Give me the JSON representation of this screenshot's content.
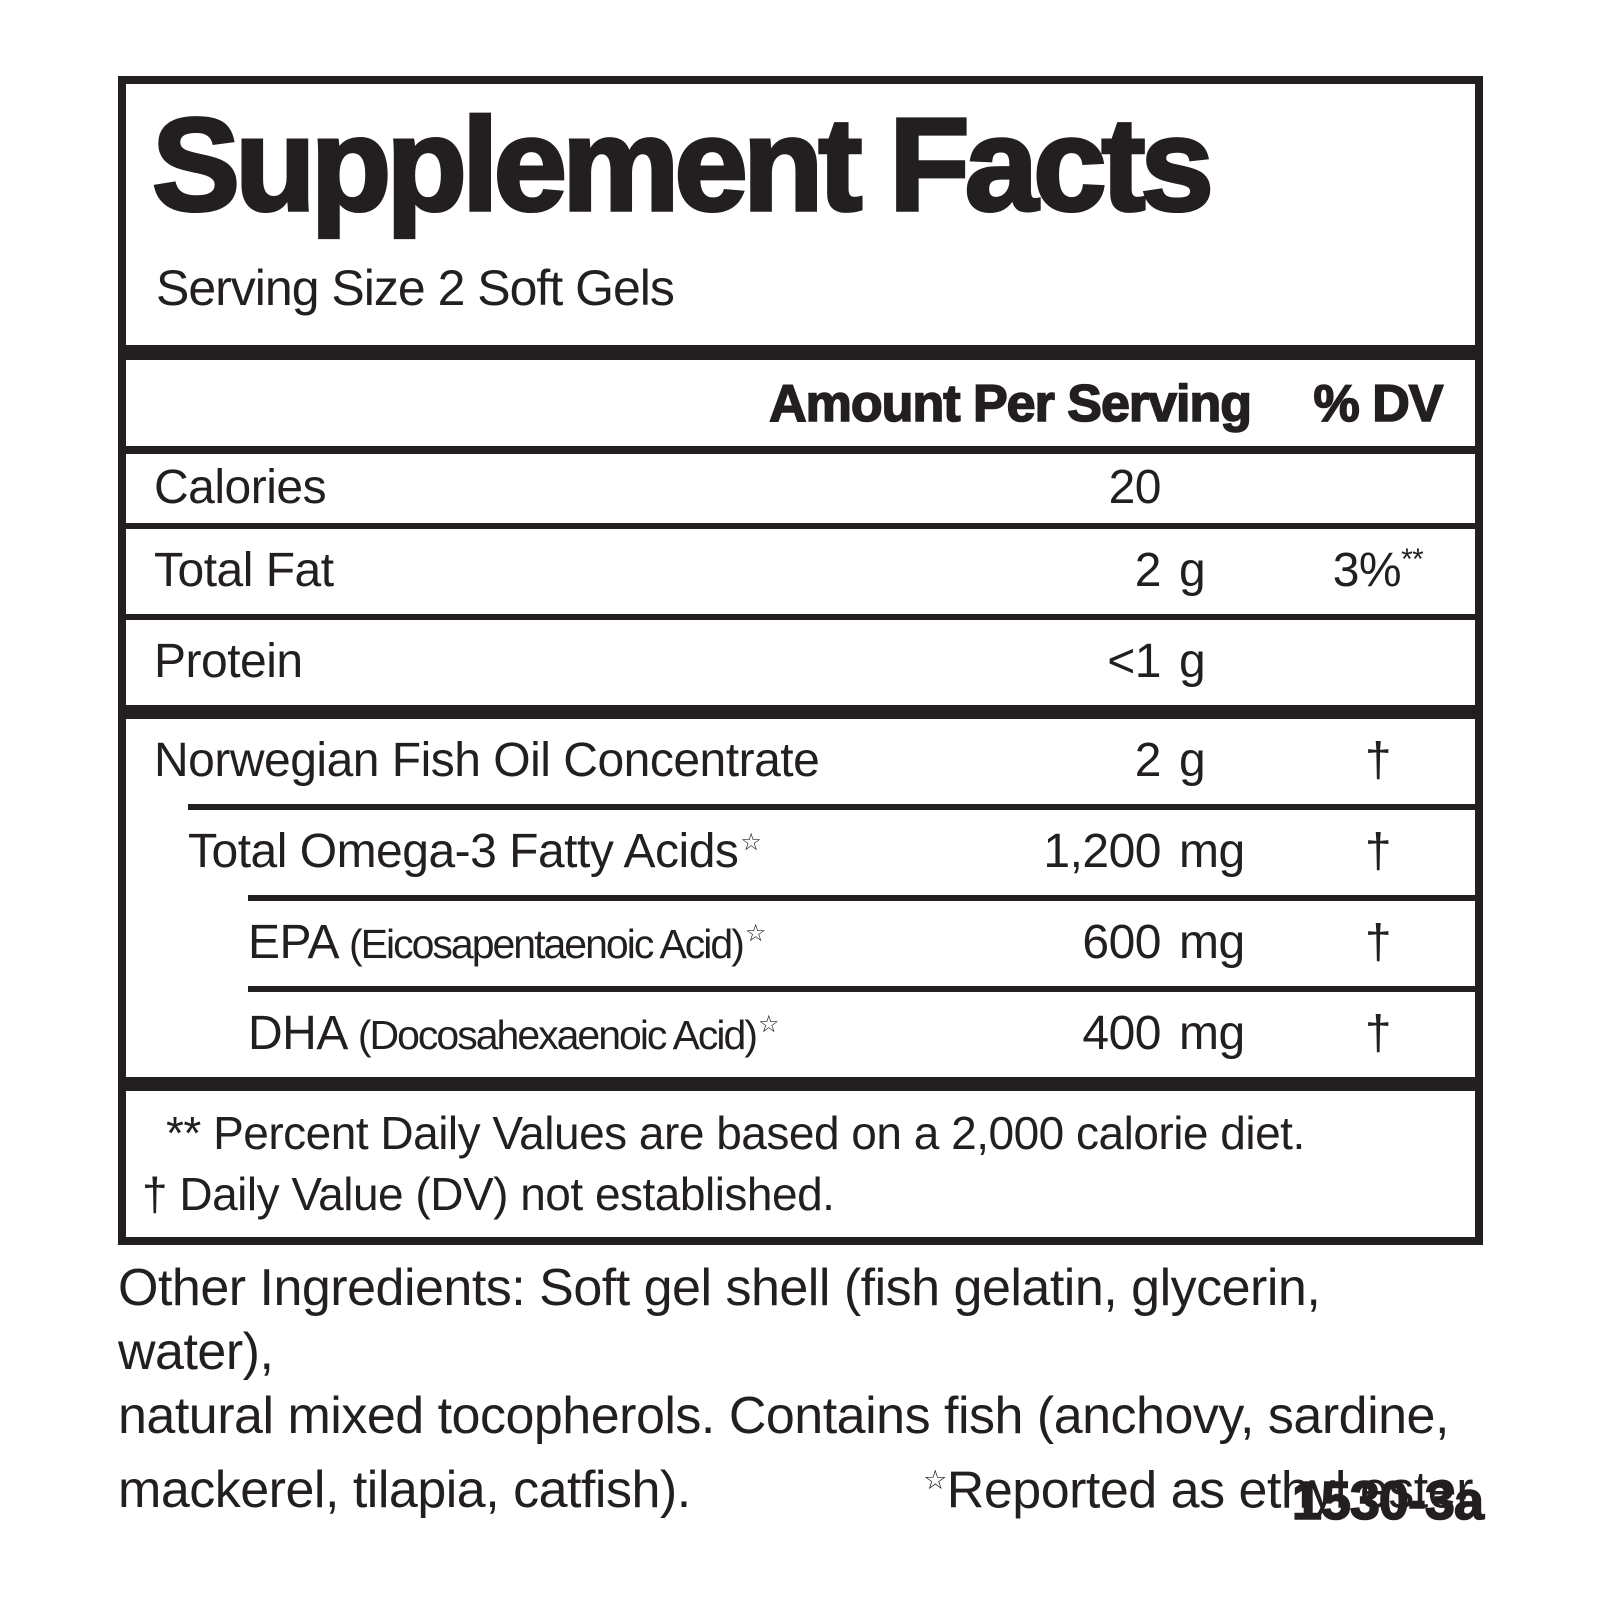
{
  "label": {
    "title": "Supplement Facts",
    "serving_size": "Serving Size 2 Soft Gels",
    "header": {
      "amount": "Amount Per Serving",
      "dv": "% DV"
    },
    "rows": [
      {
        "name": "Calories",
        "amount": "20",
        "unit": "",
        "dv": ""
      },
      {
        "name": "Total Fat",
        "amount": "2",
        "unit": "g",
        "dv": "3%",
        "dv_sup": "**"
      },
      {
        "name": "Protein",
        "amount": "<1",
        "unit": "g",
        "dv": ""
      },
      {
        "name": "Norwegian Fish Oil Concentrate",
        "amount": "2",
        "unit": "g",
        "dv": "†"
      },
      {
        "name": "Total Omega-3 Fatty Acids",
        "star": "☆",
        "amount": "1,200",
        "unit": "mg",
        "dv": "†"
      },
      {
        "name": "EPA",
        "paren": "(Eicosapentaenoic Acid)",
        "star": "☆",
        "amount": "600",
        "unit": "mg",
        "dv": "†"
      },
      {
        "name": "DHA",
        "paren": "(Docosahexaenoic Acid)",
        "star": "☆",
        "amount": "400",
        "unit": "mg",
        "dv": "†"
      }
    ],
    "footnotes": [
      "** Percent Daily Values are based on a 2,000 calorie diet.",
      "† Daily Value (DV) not established."
    ],
    "other_ingredients": {
      "line1": "Other Ingredients: Soft gel shell (fish gelatin, glycerin, water),",
      "line2": "natural mixed tocopherols. Contains fish (anchovy, sardine,",
      "line3": "mackerel, tilapia, catfish)."
    },
    "reported_note": {
      "star": "☆",
      "text": "Reported as ethyl ester."
    },
    "item_code": "1530-3a",
    "colors": {
      "ink": "#231f20",
      "background": "#ffffff"
    }
  }
}
